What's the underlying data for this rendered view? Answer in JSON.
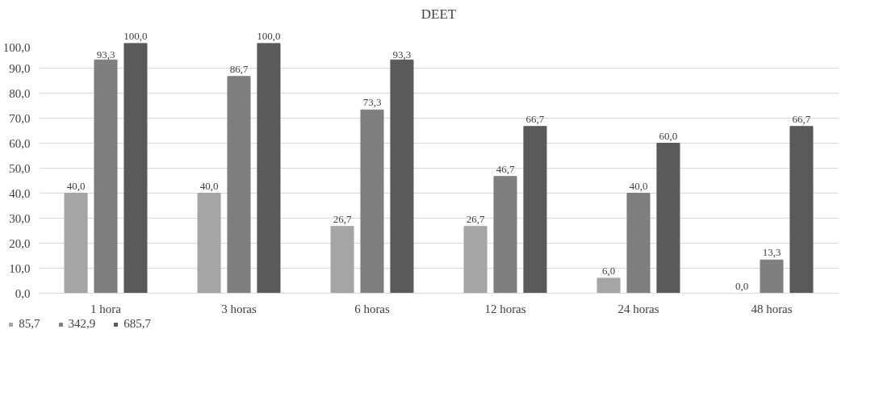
{
  "chart_data": {
    "type": "bar",
    "title": "DEET",
    "categories": [
      "1 hora",
      "3 horas",
      "6 horas",
      "12 horas",
      "24 horas",
      "48 horas"
    ],
    "series": [
      {
        "name": "85,7",
        "color": "#a5a5a5",
        "values": [
          40.0,
          40.0,
          26.7,
          26.7,
          6.0,
          0.0
        ],
        "value_labels": [
          "40,0",
          "40,0",
          "26,7",
          "26,7",
          "6,0",
          "0,0"
        ]
      },
      {
        "name": "342,9",
        "color": "#7f7f7f",
        "values": [
          93.3,
          86.7,
          73.3,
          46.7,
          40.0,
          13.3
        ],
        "value_labels": [
          "93,3",
          "86,7",
          "73,3",
          "46,7",
          "40,0",
          "13,3"
        ]
      },
      {
        "name": "685,7",
        "color": "#5a5a5a",
        "values": [
          100.0,
          100.0,
          93.3,
          66.7,
          60.0,
          66.7
        ],
        "value_labels": [
          "100,0",
          "100,0",
          "93,3",
          "66,7",
          "60,0",
          "66,7"
        ]
      }
    ],
    "ylim": [
      0,
      100
    ],
    "yticks": [
      {
        "value": 0,
        "label": "0,0"
      },
      {
        "value": 10,
        "label": "10,0"
      },
      {
        "value": 20,
        "label": "20,0"
      },
      {
        "value": 30,
        "label": "30,0"
      },
      {
        "value": 40,
        "label": "40,0"
      },
      {
        "value": 50,
        "label": "50,0"
      },
      {
        "value": 60,
        "label": "60,0"
      },
      {
        "value": 70,
        "label": "70,0"
      },
      {
        "value": 80,
        "label": "80,0"
      },
      {
        "value": 90,
        "label": "90,0"
      },
      {
        "value": 100,
        "label": "100,0"
      }
    ],
    "grid": "y",
    "legend": "bottom"
  }
}
